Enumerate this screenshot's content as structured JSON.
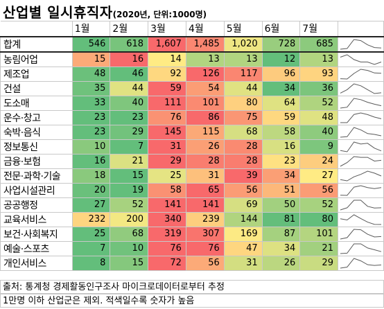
{
  "title": {
    "main": "산업별 일시휴직자",
    "sub": "(2020년, 단위:1000명)"
  },
  "months": [
    "1월",
    "2월",
    "3월",
    "4월",
    "5월",
    "6월",
    "7월"
  ],
  "rows": [
    {
      "label": "합계",
      "values": [
        "546",
        "618",
        "1,607",
        "1,485",
        "1,020",
        "728",
        "685"
      ],
      "raw": [
        546,
        618,
        1607,
        1485,
        1020,
        728,
        685
      ]
    },
    {
      "label": "농림어업",
      "values": [
        "15",
        "16",
        "14",
        "13",
        "13",
        "12",
        "13"
      ],
      "raw": [
        15,
        16,
        14,
        13,
        13,
        12,
        13
      ]
    },
    {
      "label": "제조업",
      "values": [
        "48",
        "46",
        "92",
        "126",
        "117",
        "96",
        "93"
      ],
      "raw": [
        48,
        46,
        92,
        126,
        117,
        96,
        93
      ]
    },
    {
      "label": "건설",
      "values": [
        "35",
        "44",
        "59",
        "54",
        "44",
        "34",
        "36"
      ],
      "raw": [
        35,
        44,
        59,
        54,
        44,
        34,
        36
      ]
    },
    {
      "label": "도소매",
      "values": [
        "33",
        "40",
        "111",
        "101",
        "80",
        "64",
        "52"
      ],
      "raw": [
        33,
        40,
        111,
        101,
        80,
        64,
        52
      ]
    },
    {
      "label": "운수·창고",
      "values": [
        "23",
        "23",
        "76",
        "86",
        "75",
        "59",
        "48"
      ],
      "raw": [
        23,
        23,
        76,
        86,
        75,
        59,
        48
      ]
    },
    {
      "label": "숙박·음식",
      "values": [
        "23",
        "29",
        "145",
        "115",
        "68",
        "58",
        "40"
      ],
      "raw": [
        23,
        29,
        145,
        115,
        68,
        58,
        40
      ]
    },
    {
      "label": "정보통신",
      "values": [
        "10",
        "7",
        "31",
        "26",
        "28",
        "16",
        "9"
      ],
      "raw": [
        10,
        7,
        31,
        26,
        28,
        16,
        9
      ]
    },
    {
      "label": "금융·보험",
      "values": [
        "16",
        "21",
        "29",
        "28",
        "28",
        "23",
        "24"
      ],
      "raw": [
        16,
        21,
        29,
        28,
        28,
        23,
        24
      ]
    },
    {
      "label": "전문·과학·기술",
      "values": [
        "18",
        "15",
        "25",
        "31",
        "39",
        "34",
        "27"
      ],
      "raw": [
        18,
        15,
        25,
        31,
        39,
        34,
        27
      ]
    },
    {
      "label": "사업시설관리",
      "values": [
        "20",
        "19",
        "58",
        "65",
        "56",
        "51",
        "56"
      ],
      "raw": [
        20,
        19,
        58,
        65,
        56,
        51,
        56
      ]
    },
    {
      "label": "공공행정",
      "values": [
        "27",
        "52",
        "141",
        "141",
        "69",
        "50",
        "52"
      ],
      "raw": [
        27,
        52,
        141,
        141,
        69,
        50,
        52
      ]
    },
    {
      "label": "교육서비스",
      "values": [
        "232",
        "200",
        "340",
        "239",
        "144",
        "81",
        "80"
      ],
      "raw": [
        232,
        200,
        340,
        239,
        144,
        81,
        80
      ]
    },
    {
      "label": "보건·사회복지",
      "values": [
        "25",
        "68",
        "319",
        "307",
        "169",
        "87",
        "101"
      ],
      "raw": [
        25,
        68,
        319,
        307,
        169,
        87,
        101
      ]
    },
    {
      "label": "예술·스포츠",
      "values": [
        "7",
        "10",
        "76",
        "76",
        "47",
        "34",
        "21"
      ],
      "raw": [
        7,
        10,
        76,
        76,
        47,
        34,
        21
      ]
    },
    {
      "label": "개인서비스",
      "values": [
        "8",
        "15",
        "72",
        "56",
        "31",
        "26",
        "29"
      ],
      "raw": [
        8,
        15,
        72,
        56,
        31,
        26,
        29
      ]
    }
  ],
  "footer": {
    "line1": "출처: 통계청 경제활동인구조사 마이크로데이터로부터 추정",
    "line2": "1만명 이하 산업군은 제외. 적색일수록 숫자가 높음"
  },
  "colors": {
    "low": "#63be7b",
    "mid": "#ffeb84",
    "high": "#f8696b",
    "spark": "#595959"
  }
}
